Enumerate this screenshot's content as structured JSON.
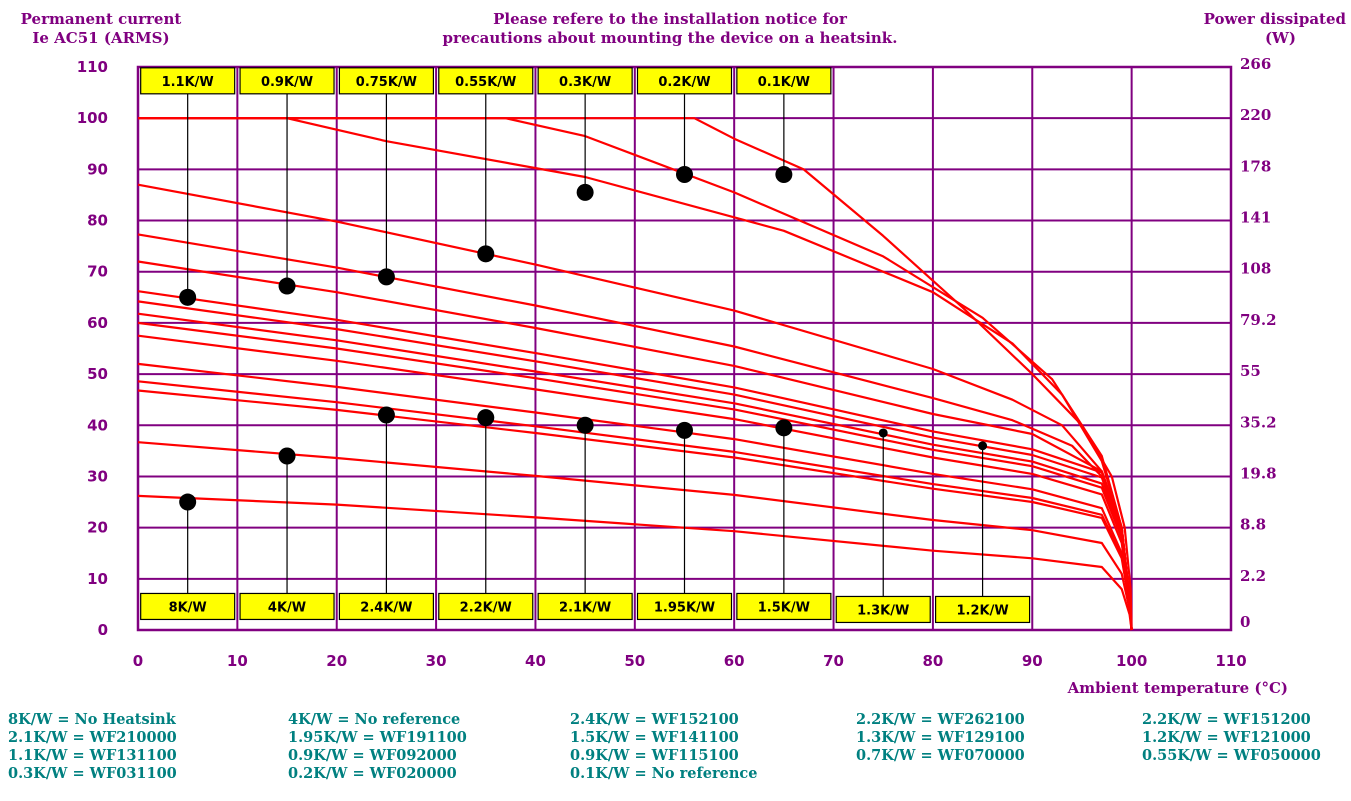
{
  "header": {
    "left_title_1": "Permanent current",
    "left_title_2": "Ie AC51 (ARMS)",
    "center_note_1": "Please refere to the installation notice for",
    "center_note_2": "precautions about mounting the device on a heatsink.",
    "right_title_1": "Power dissipated",
    "right_title_2": "(W)"
  },
  "colors": {
    "grid": "#800080",
    "curve": "#ff0000",
    "label_fill": "#ffff00",
    "legend_text": "#008080"
  },
  "chart_data": {
    "type": "line",
    "title": "",
    "xlabel": "Ambient temperature (°C)",
    "ylabel": "Permanent current Ie AC51 (ARMS)",
    "y2label": "Power dissipated (W)",
    "xlim": [
      0,
      110
    ],
    "ylim": [
      0,
      110
    ],
    "grid": true,
    "x_ticks": [
      "0",
      "10",
      "20",
      "30",
      "40",
      "50",
      "60",
      "70",
      "80",
      "90",
      "100",
      "110"
    ],
    "y_ticks": [
      "0",
      "10",
      "20",
      "30",
      "40",
      "50",
      "60",
      "70",
      "80",
      "90",
      "100",
      "110"
    ],
    "y2_ticks": [
      "",
      "2.2",
      "8.8",
      "19.8",
      "35.2",
      "55",
      "79.2",
      "108",
      "141",
      "178",
      "220",
      "266"
    ],
    "series": [
      {
        "name": "8K/W",
        "points": [
          [
            0,
            26.2
          ],
          [
            20,
            24.5
          ],
          [
            40,
            22.0
          ],
          [
            60,
            19.3
          ],
          [
            80,
            15.5
          ],
          [
            90,
            14.0
          ],
          [
            97,
            12.3
          ],
          [
            99,
            8
          ],
          [
            99.8,
            3
          ],
          [
            100,
            0
          ]
        ]
      },
      {
        "name": "4K/W",
        "points": [
          [
            0,
            36.7
          ],
          [
            20,
            33.6
          ],
          [
            40,
            30.1
          ],
          [
            60,
            26.4
          ],
          [
            80,
            21.5
          ],
          [
            90,
            19.5
          ],
          [
            97,
            17.0
          ],
          [
            99,
            11
          ],
          [
            99.8,
            4
          ],
          [
            100,
            0
          ]
        ]
      },
      {
        "name": "2.4K/W",
        "points": [
          [
            0,
            46.8
          ],
          [
            20,
            43.0
          ],
          [
            40,
            38.5
          ],
          [
            60,
            33.7
          ],
          [
            80,
            27.6
          ],
          [
            90,
            25.0
          ],
          [
            97,
            21.9
          ],
          [
            99,
            14
          ],
          [
            99.8,
            5
          ],
          [
            100,
            0
          ]
        ]
      },
      {
        "name": "2.2K/W",
        "points": [
          [
            0,
            48.6
          ],
          [
            20,
            44.5
          ],
          [
            40,
            39.8
          ],
          [
            60,
            34.8
          ],
          [
            80,
            28.5
          ],
          [
            90,
            25.8
          ],
          [
            97,
            22.5
          ],
          [
            99,
            14.5
          ],
          [
            99.8,
            5
          ],
          [
            100,
            0
          ]
        ]
      },
      {
        "name": "2.1K/W",
        "points": [
          [
            0,
            52.0
          ],
          [
            20,
            47.5
          ],
          [
            40,
            42.5
          ],
          [
            60,
            37.3
          ],
          [
            80,
            30.5
          ],
          [
            90,
            27.5
          ],
          [
            97,
            23.8
          ],
          [
            99,
            15
          ],
          [
            99.8,
            5
          ],
          [
            100,
            0
          ]
        ]
      },
      {
        "name": "1.95K/W",
        "points": [
          [
            0,
            57.5
          ],
          [
            20,
            52.6
          ],
          [
            40,
            47.0
          ],
          [
            60,
            41.2
          ],
          [
            80,
            33.7
          ],
          [
            90,
            30.5
          ],
          [
            97,
            26.5
          ],
          [
            99,
            17
          ],
          [
            99.8,
            6
          ],
          [
            100,
            0
          ]
        ]
      },
      {
        "name": "1.5K/W",
        "points": [
          [
            0,
            60.0
          ],
          [
            20,
            55.0
          ],
          [
            40,
            49.2
          ],
          [
            60,
            43.1
          ],
          [
            80,
            35.2
          ],
          [
            90,
            32.0
          ],
          [
            97,
            27.8
          ],
          [
            99,
            18
          ],
          [
            99.8,
            6
          ],
          [
            100,
            0
          ]
        ]
      },
      {
        "name": "1.3K/W",
        "points": [
          [
            0,
            61.8
          ],
          [
            20,
            56.6
          ],
          [
            40,
            50.5
          ],
          [
            60,
            44.3
          ],
          [
            80,
            36.2
          ],
          [
            90,
            32.9
          ],
          [
            97,
            28.6
          ],
          [
            99,
            18.5
          ],
          [
            99.8,
            6
          ],
          [
            100,
            0
          ]
        ]
      },
      {
        "name": "1.2K/W",
        "points": [
          [
            0,
            64.2
          ],
          [
            20,
            58.8
          ],
          [
            40,
            52.5
          ],
          [
            60,
            46.0
          ],
          [
            80,
            37.6
          ],
          [
            90,
            34.2
          ],
          [
            97,
            29.8
          ],
          [
            99,
            19
          ],
          [
            99.8,
            6
          ],
          [
            100,
            0
          ]
        ]
      },
      {
        "name": "1.1K/W",
        "points": [
          [
            0,
            66.2
          ],
          [
            20,
            60.6
          ],
          [
            40,
            54.1
          ],
          [
            60,
            47.4
          ],
          [
            80,
            38.8
          ],
          [
            90,
            35.3
          ],
          [
            97,
            30.8
          ],
          [
            99,
            19.5
          ],
          [
            99.8,
            6
          ],
          [
            100,
            0
          ]
        ]
      },
      {
        "name": "0.9K/W",
        "points": [
          [
            0,
            72.0
          ],
          [
            20,
            66.0
          ],
          [
            40,
            59.0
          ],
          [
            60,
            51.6
          ],
          [
            80,
            42.2
          ],
          [
            90,
            38.3
          ],
          [
            97,
            31.0
          ],
          [
            99,
            20
          ],
          [
            99.8,
            6
          ],
          [
            100,
            0
          ]
        ]
      },
      {
        "name": "0.75K/W",
        "points": [
          [
            0,
            77.3
          ],
          [
            20,
            70.8
          ],
          [
            40,
            63.4
          ],
          [
            60,
            55.4
          ],
          [
            80,
            45.3
          ],
          [
            88,
            41.0
          ],
          [
            94,
            36.0
          ],
          [
            97,
            30.0
          ],
          [
            99,
            20
          ],
          [
            99.8,
            6
          ],
          [
            100,
            0
          ]
        ]
      },
      {
        "name": "0.55K/W",
        "points": [
          [
            0,
            87.0
          ],
          [
            20,
            79.8
          ],
          [
            40,
            71.4
          ],
          [
            60,
            62.4
          ],
          [
            80,
            51.0
          ],
          [
            88,
            45.0
          ],
          [
            93,
            40.0
          ],
          [
            97,
            31.0
          ],
          [
            99,
            20
          ],
          [
            99.8,
            6
          ],
          [
            100,
            0
          ]
        ]
      },
      {
        "name": "0.3K/W",
        "points": [
          [
            0,
            100.0
          ],
          [
            15,
            100.0
          ],
          [
            25,
            95.5
          ],
          [
            45,
            88.5
          ],
          [
            65,
            78.0
          ],
          [
            80,
            66.0
          ],
          [
            88,
            56.0
          ],
          [
            93,
            46.0
          ],
          [
            97,
            33.0
          ],
          [
            99,
            20
          ],
          [
            99.8,
            6
          ],
          [
            100,
            0
          ]
        ]
      },
      {
        "name": "0.2K/W",
        "points": [
          [
            0,
            100.0
          ],
          [
            37,
            100.0
          ],
          [
            45,
            96.5
          ],
          [
            60,
            85.5
          ],
          [
            75,
            73.0
          ],
          [
            85,
            61.0
          ],
          [
            92,
            49.0
          ],
          [
            97,
            34.0
          ],
          [
            99,
            20
          ],
          [
            99.8,
            6
          ],
          [
            100,
            0
          ]
        ]
      },
      {
        "name": "0.1K/W",
        "points": [
          [
            0,
            100.0
          ],
          [
            56,
            100.0
          ],
          [
            60,
            96.0
          ],
          [
            67,
            90.0
          ],
          [
            75,
            77.0
          ],
          [
            83,
            63.0
          ],
          [
            90,
            50.0
          ],
          [
            95,
            40.0
          ],
          [
            98,
            30.0
          ],
          [
            99.3,
            20
          ],
          [
            99.9,
            8
          ],
          [
            100,
            0
          ]
        ]
      }
    ],
    "top_labels": [
      {
        "text": "1.1K/W",
        "x": 5,
        "y": 65
      },
      {
        "text": "0.9K/W",
        "x": 15,
        "y": 67.2
      },
      {
        "text": "0.75K/W",
        "x": 25,
        "y": 69
      },
      {
        "text": "0.55K/W",
        "x": 35,
        "y": 73.5
      },
      {
        "text": "0.3K/W",
        "x": 45,
        "y": 85.5
      },
      {
        "text": "0.2K/W",
        "x": 55,
        "y": 89
      },
      {
        "text": "0.1K/W",
        "x": 65,
        "y": 89
      }
    ],
    "bottom_labels": [
      {
        "text": "8K/W",
        "x": 5,
        "y": 25
      },
      {
        "text": "4K/W",
        "x": 15,
        "y": 34
      },
      {
        "text": "2.4K/W",
        "x": 25,
        "y": 42
      },
      {
        "text": "2.2K/W",
        "x": 35,
        "y": 41.5
      },
      {
        "text": "2.1K/W",
        "x": 45,
        "y": 40
      },
      {
        "text": "1.95K/W",
        "x": 55,
        "y": 39
      },
      {
        "text": "1.5K/W",
        "x": 65,
        "y": 39.5
      },
      {
        "text": "1.3K/W",
        "x": 75,
        "y": 38.5
      },
      {
        "text": "1.2K/W",
        "x": 85,
        "y": 36
      }
    ]
  },
  "legend": {
    "rows": [
      [
        "8K/W = No Heatsink",
        "4K/W = No reference",
        "2.4K/W = WF152100",
        "2.2K/W = WF262100",
        "2.2K/W = WF151200"
      ],
      [
        "2.1K/W = WF210000",
        "1.95K/W = WF191100",
        "1.5K/W = WF141100",
        "1.3K/W = WF129100",
        "1.2K/W = WF121000"
      ],
      [
        "1.1K/W = WF131100",
        "0.9K/W = WF092000",
        "0.9K/W = WF115100",
        "0.7K/W = WF070000",
        "0.55K/W = WF050000"
      ],
      [
        "0.3K/W = WF031100",
        "0.2K/W = WF020000",
        "0.1K/W = No reference",
        "",
        ""
      ]
    ]
  }
}
